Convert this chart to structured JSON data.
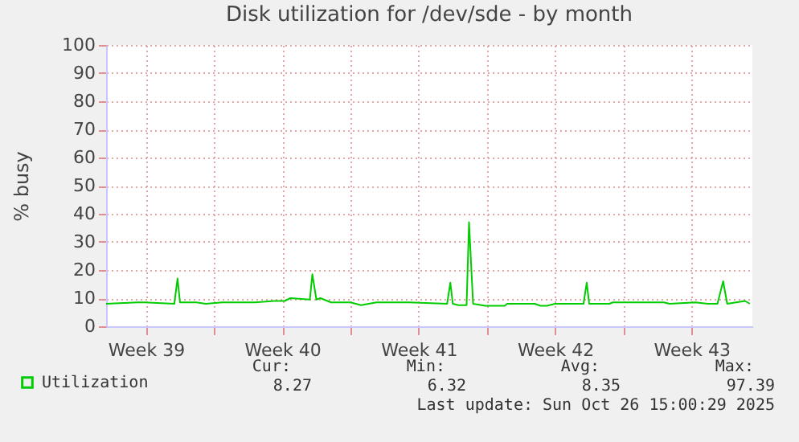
{
  "chart_data": {
    "type": "line",
    "title": "Disk utilization for /dev/sde - by month",
    "ylabel": "% busy",
    "x": [
      "2025-09-23T11:00",
      "2025-09-25T02:00",
      "2025-09-25T10:00",
      "2025-09-26T23:00",
      "2025-09-27T03:00",
      "2025-09-27T06:00",
      "2025-09-28T02:00",
      "2025-09-28T14:00",
      "2025-09-29T10:00",
      "2025-09-30T10:00",
      "2025-10-01T02:00",
      "2025-10-02T02:00",
      "2025-10-02T15:00",
      "2025-10-02T22:00",
      "2025-10-03T22:00",
      "2025-10-04T01:00",
      "2025-10-04T06:00",
      "2025-10-04T11:00",
      "2025-10-05T00:00",
      "2025-10-06T00:00",
      "2025-10-06T13:00",
      "2025-10-07T08:00",
      "2025-10-09T00:00",
      "2025-10-10T23:00",
      "2025-10-11T03:00",
      "2025-10-11T06:00",
      "2025-10-11T13:00",
      "2025-10-11T23:00",
      "2025-10-12T02:00",
      "2025-10-12T07:00",
      "2025-10-12T22:00",
      "2025-10-13T22:00",
      "2025-10-14T01:00",
      "2025-10-15T11:00",
      "2025-10-15T18:00",
      "2025-10-16T02:00",
      "2025-10-16T12:00",
      "2025-10-17T23:00",
      "2025-10-18T03:00",
      "2025-10-18T06:00",
      "2025-10-19T07:00",
      "2025-10-19T11:00",
      "2025-10-20T03:00",
      "2025-10-22T02:00",
      "2025-10-22T09:00",
      "2025-10-23T17:00",
      "2025-10-24T08:00",
      "2025-10-24T20:00",
      "2025-10-25T03:00",
      "2025-10-25T08:00",
      "2025-10-26T06:00",
      "2025-10-26T12:00"
    ],
    "series": [
      {
        "name": "Utilization",
        "color": "#00cc00",
        "values": [
          8,
          8.5,
          8.5,
          8,
          17,
          8.5,
          8.5,
          8,
          8.5,
          8.5,
          8.5,
          9,
          9,
          10,
          9.5,
          18.5,
          9.5,
          10,
          8.5,
          8.5,
          7.5,
          8.5,
          8.5,
          8,
          15.5,
          8,
          7.5,
          7.5,
          37,
          8,
          7.3,
          7.3,
          8,
          8,
          7.3,
          7.3,
          8,
          8,
          15.5,
          8,
          8,
          8.5,
          8.5,
          8.5,
          8,
          8.5,
          8,
          8,
          16,
          8,
          9,
          8
        ]
      }
    ],
    "xlim": [
      "2025-09-23T11:00",
      "2025-10-26T15:00"
    ],
    "xticks": [
      {
        "value": "2025-09-25T12:00",
        "label": "Week 39"
      },
      {
        "value": "2025-09-29",
        "label": null
      },
      {
        "value": "2025-10-02T12:00",
        "label": "Week 40"
      },
      {
        "value": "2025-10-06",
        "label": null
      },
      {
        "value": "2025-10-09T12:00",
        "label": "Week 41"
      },
      {
        "value": "2025-10-13",
        "label": null
      },
      {
        "value": "2025-10-16T12:00",
        "label": "Week 42"
      },
      {
        "value": "2025-10-20",
        "label": null
      },
      {
        "value": "2025-10-23T12:00",
        "label": "Week 43"
      }
    ],
    "ylim": [
      0,
      100
    ],
    "yticks": [
      0,
      10,
      20,
      30,
      40,
      50,
      60,
      70,
      80,
      90,
      100
    ],
    "grid": true,
    "legend": "bottom",
    "marker": "none",
    "line_style": "solid",
    "annotations": [
      "Cur:",
      "Min:",
      "Avg:",
      "Max:",
      "8.27",
      "6.32",
      "8.35",
      "97.39",
      "Last update: Sun Oct 26 15:00:29 2025"
    ]
  }
}
